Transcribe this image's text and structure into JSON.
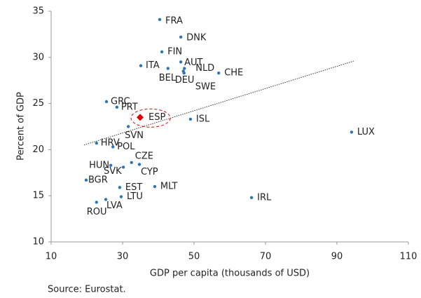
{
  "chart_data": {
    "type": "scatter",
    "y_label": "Percent of GDP",
    "x_label": "GDP per capita (thousands of USD)",
    "source": "Source: Eurostat.",
    "categories": [
      "FRA",
      "DNK",
      "FIN",
      "AUT",
      "NLD",
      "ITA",
      "BEL",
      "DEU",
      "SWE",
      "CHE",
      "GRC",
      "PRT",
      "ESP",
      "ISL",
      "SVN",
      "LUX",
      "HRV",
      "POL",
      "CZE",
      "CYP",
      "HUN",
      "SVK",
      "BGR",
      "EST",
      "MLT",
      "LTU",
      "IRL",
      "LVA",
      "ROU"
    ],
    "x": [
      40.4,
      46.3,
      41.0,
      46.3,
      47.3,
      35.1,
      42.7,
      47.0,
      47.2,
      56.9,
      25.5,
      28.4,
      34.9,
      49.0,
      31.6,
      94.1,
      22.7,
      27.3,
      32.5,
      34.7,
      26.7,
      30.2,
      19.8,
      29.2,
      39.0,
      29.6,
      66.1,
      25.3,
      22.7
    ],
    "values": [
      34.1,
      32.2,
      30.6,
      29.5,
      28.8,
      29.1,
      28.8,
      28.5,
      28.3,
      28.3,
      25.2,
      24.6,
      23.5,
      23.3,
      22.5,
      21.9,
      20.7,
      20.3,
      18.6,
      18.4,
      18.3,
      18.1,
      16.7,
      15.9,
      16.0,
      14.9,
      14.8,
      14.6,
      14.3
    ],
    "color": "#2e75b6",
    "highlight": "ESP",
    "highlight_color": "#e00000",
    "trendline": {
      "x": [
        19.2,
        94.7
      ],
      "y": [
        20.5,
        29.6
      ]
    },
    "xlim": [
      10,
      110
    ],
    "xticks": [
      10,
      30,
      50,
      70,
      90,
      110
    ],
    "ylim": [
      10,
      35
    ],
    "yticks": [
      10,
      15,
      20,
      25,
      30,
      35
    ]
  }
}
